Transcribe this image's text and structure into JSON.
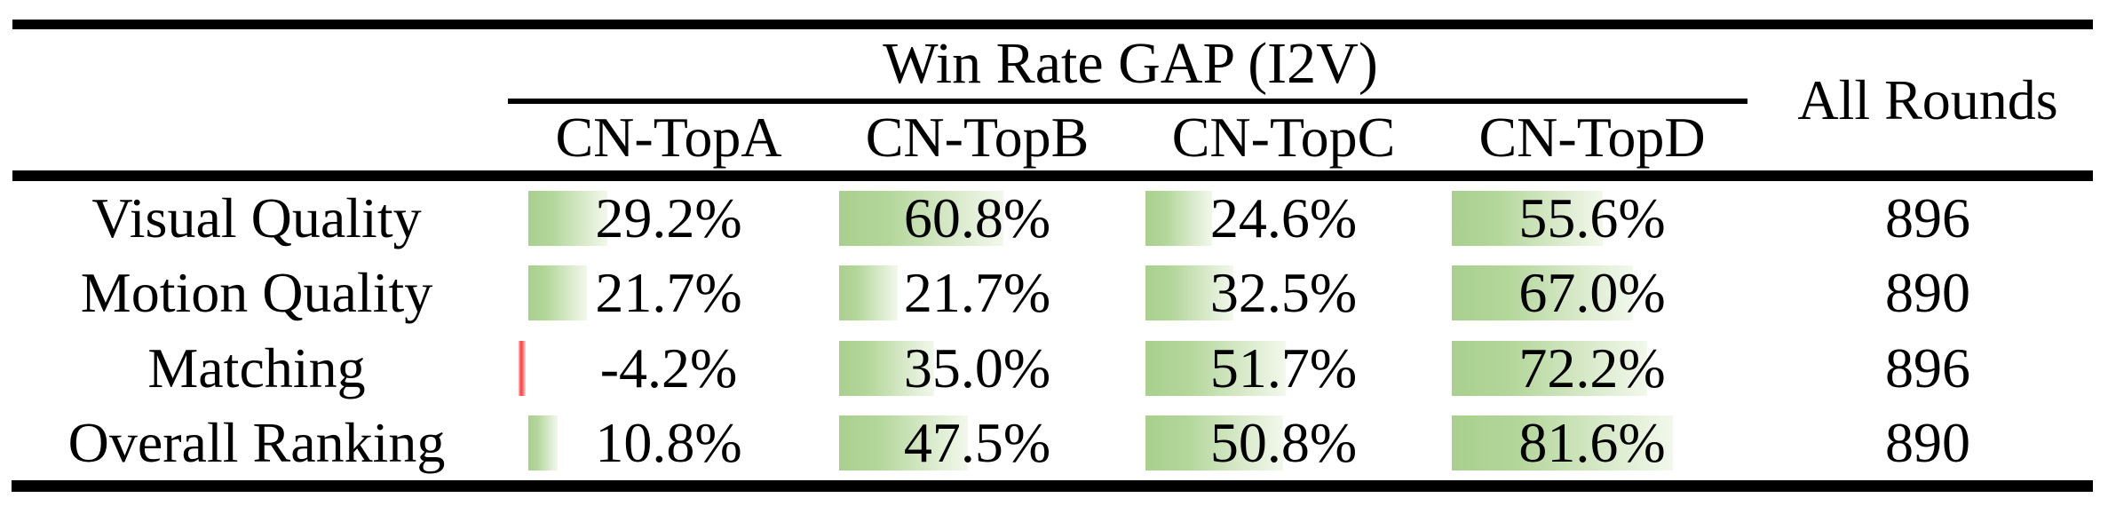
{
  "table": {
    "title": "Win Rate GAP (I2V)",
    "all_rounds_header": "All Rounds",
    "group_columns": [
      "CN-TopA",
      "CN-TopB",
      "CN-TopC",
      "CN-TopD"
    ],
    "rows": [
      {
        "label": "Visual Quality",
        "values": [
          29.2,
          60.8,
          24.6,
          55.6
        ],
        "display": [
          "29.2%",
          "60.8%",
          "24.6%",
          "55.6%"
        ],
        "all_rounds": "896"
      },
      {
        "label": "Motion Quality",
        "values": [
          21.7,
          21.7,
          32.5,
          67.0
        ],
        "display": [
          "21.7%",
          "21.7%",
          "32.5%",
          "67.0%"
        ],
        "all_rounds": "890"
      },
      {
        "label": "Matching",
        "values": [
          -4.2,
          35.0,
          51.7,
          72.2
        ],
        "display": [
          "-4.2%",
          "35.0%",
          "51.7%",
          "72.2%"
        ],
        "all_rounds": "896"
      },
      {
        "label": "Overall Ranking",
        "values": [
          10.8,
          47.5,
          50.8,
          81.6
        ],
        "display": [
          "10.8%",
          "47.5%",
          "50.8%",
          "81.6%"
        ],
        "all_rounds": "890"
      }
    ]
  },
  "chart_data": {
    "type": "table",
    "title": "Win Rate GAP (I2V)",
    "categories": [
      "CN-TopA",
      "CN-TopB",
      "CN-TopC",
      "CN-TopD"
    ],
    "unit": "%",
    "series": [
      {
        "name": "Visual Quality",
        "values": [
          29.2,
          60.8,
          24.6,
          55.6
        ],
        "all_rounds": 896
      },
      {
        "name": "Motion Quality",
        "values": [
          21.7,
          21.7,
          32.5,
          67.0
        ],
        "all_rounds": 890
      },
      {
        "name": "Matching",
        "values": [
          -4.2,
          35.0,
          51.7,
          72.2
        ],
        "all_rounds": 896
      },
      {
        "name": "Overall Ranking",
        "values": [
          10.8,
          47.5,
          50.8,
          81.6
        ],
        "all_rounds": 890
      }
    ]
  },
  "colors": {
    "bar_positive": "#a9d08e",
    "bar_negative": "#ff3b3b",
    "rule": "#000000",
    "background": "#ffffff"
  }
}
